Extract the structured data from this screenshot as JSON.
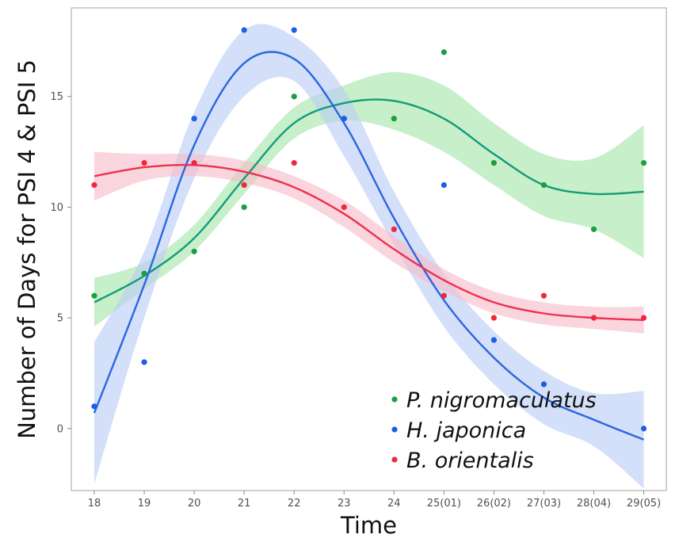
{
  "chart_data": {
    "type": "scatter",
    "xlabel": "Time",
    "ylabel": "Number of Days for PSI 4 & PSI 5",
    "categories": [
      "18",
      "19",
      "20",
      "21",
      "22",
      "23",
      "24",
      "25(01)",
      "26(02)",
      "27(03)",
      "28(04)",
      "29(05)"
    ],
    "yticks": [
      0,
      5,
      10,
      15
    ],
    "ylim": [
      -2.8,
      19.0
    ],
    "grid": false,
    "legend_position": "bottom-right",
    "fit": "smooth curve with confidence band",
    "series": [
      {
        "name": "P. nigromaculatus",
        "color": "#1b9e3e",
        "line_color": "#139c78",
        "band_color": "#a4e5aa",
        "points": [
          6,
          7,
          8,
          10,
          15,
          14,
          14,
          17,
          12,
          11,
          9,
          12
        ],
        "fit": [
          5.7,
          6.9,
          8.6,
          11.3,
          13.8,
          14.7,
          14.8,
          14.0,
          12.4,
          11.0,
          10.6,
          10.7
        ],
        "band_half_width": [
          1.1,
          0.6,
          0.6,
          0.7,
          0.7,
          0.8,
          1.3,
          1.5,
          1.4,
          1.4,
          1.6,
          3.0
        ]
      },
      {
        "name": "H. japonica",
        "color": "#1a5fe6",
        "line_color": "#2a66e0",
        "band_color": "#b9cdf5",
        "points": [
          1,
          3,
          14,
          18,
          18,
          14,
          null,
          11,
          4,
          2,
          null,
          0
        ],
        "fit": [
          0.7,
          6.5,
          12.8,
          16.5,
          16.7,
          13.8,
          9.5,
          5.8,
          3.2,
          1.4,
          0.4,
          -0.5
        ],
        "band_half_width": [
          3.2,
          1.5,
          1.5,
          1.5,
          1.0,
          1.5,
          1.2,
          1.2,
          1.2,
          1.2,
          1.2,
          2.2
        ]
      },
      {
        "name": "B. orientalis",
        "color": "#f0283c",
        "line_color": "#ee3050",
        "band_color": "#f7bcc8",
        "points": [
          11,
          12,
          12,
          11,
          12,
          10,
          9,
          6,
          5,
          6,
          5,
          5
        ],
        "fit": [
          11.4,
          11.8,
          11.9,
          11.6,
          10.9,
          9.7,
          8.1,
          6.7,
          5.7,
          5.2,
          5.0,
          4.9
        ],
        "band_half_width": [
          1.1,
          0.6,
          0.5,
          0.5,
          0.5,
          0.6,
          0.6,
          0.5,
          0.5,
          0.5,
          0.5,
          0.6
        ]
      }
    ]
  }
}
